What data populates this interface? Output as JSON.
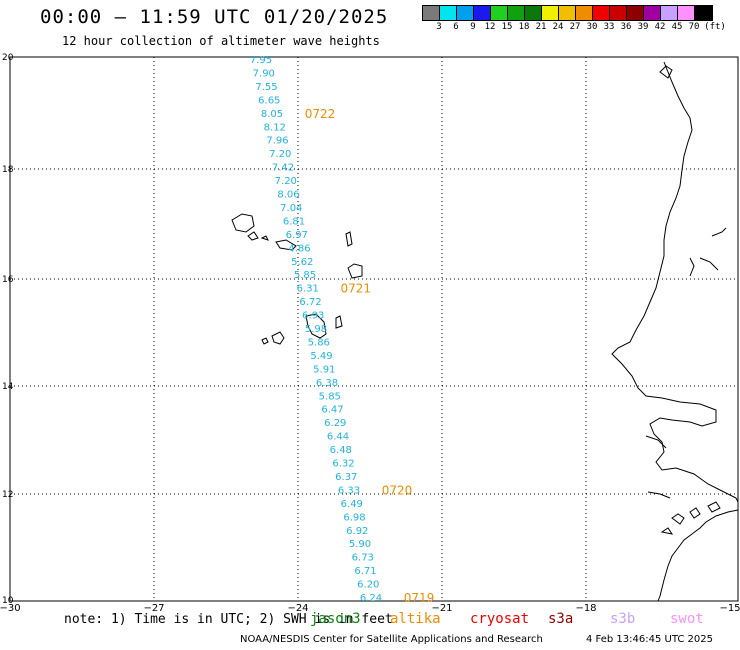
{
  "header": {
    "title": "00:00 – 11:59 UTC 01/20/2025",
    "subtitle": "12 hour collection of altimeter wave heights"
  },
  "colorbar": {
    "colors": [
      "#7a7a7a",
      "#00e5ee",
      "#00a0ee",
      "#1a1aee",
      "#20d020",
      "#10a010",
      "#0a780a",
      "#f0f000",
      "#f0c000",
      "#f08c00",
      "#f00000",
      "#c80000",
      "#8c0000",
      "#a000a0",
      "#c8a0ff",
      "#ff90ff",
      "#000000"
    ],
    "labels": [
      "3",
      "6",
      "9",
      "12",
      "15",
      "18",
      "21",
      "24",
      "27",
      "30",
      "33",
      "36",
      "39",
      "42",
      "45",
      "70"
    ],
    "unit": "(ft)"
  },
  "axes": {
    "lon_ticks": [
      "−30",
      "−27",
      "−24",
      "−21",
      "−18",
      "−15"
    ],
    "lat_ticks": [
      "20",
      "18",
      "16",
      "14",
      "12",
      "10"
    ]
  },
  "track": {
    "color": "#22b4e0",
    "wave_heights_ft": [
      "7.95",
      "7.90",
      "7.55",
      "6.65",
      "8.05",
      "8.12",
      "7.96",
      "7.20",
      "7.42",
      "7.20",
      "8.06",
      "7.04",
      "6.81",
      "6.97",
      "4.86",
      "5.62",
      "5.85",
      "6.31",
      "6.72",
      "6.93",
      "5.98",
      "5.86",
      "5.49",
      "5.91",
      "6.38",
      "5.85",
      "6.47",
      "6.29",
      "6.44",
      "6.48",
      "6.32",
      "6.37",
      "6.33",
      "6.49",
      "6.98",
      "6.92",
      "5.90",
      "6.73",
      "6.71",
      "6.20",
      "6.24"
    ],
    "time_labels": [
      {
        "text": "0722",
        "color": "#f08c00"
      },
      {
        "text": "0721",
        "color": "#f08c00"
      },
      {
        "text": "0720",
        "color": "#f08c00"
      },
      {
        "text": "0719",
        "color": "#f08c00"
      }
    ]
  },
  "note": {
    "text": "note: 1) Time is in UTC; 2) SWH is in feet"
  },
  "satellites": [
    {
      "name": "jason3",
      "color": "#108010"
    },
    {
      "name": "altika",
      "color": "#f08c00"
    },
    {
      "name": "cryosat",
      "color": "#f00000"
    },
    {
      "name": "s3a",
      "color": "#8c0000"
    },
    {
      "name": "s3b",
      "color": "#c8a0ff"
    },
    {
      "name": "swot",
      "color": "#ff90ff"
    }
  ],
  "footer": {
    "credit": "NOAA/NESDIS Center for Satellite Applications and Research",
    "generated": "4 Feb 13:46:45 UTC 2025"
  }
}
